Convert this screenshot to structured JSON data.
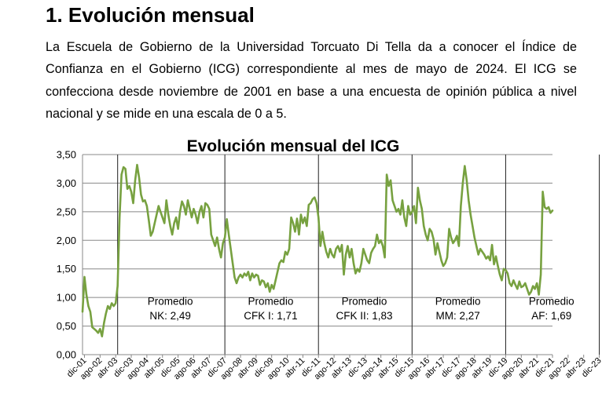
{
  "section_title": "1. Evolución mensual",
  "intro_text": "La Escuela de Gobierno de la Universidad Torcuato Di Tella da a conocer el Índice de Confianza en el Gobierno (ICG) correspondiente al mes de mayo de 2024. El ICG se confecciona desde noviembre de 2001 en base a una encuesta de opinión pública a nivel nacional y se mide en una escala de 0 a 5.",
  "chart_data": {
    "type": "line",
    "title": "Evolución mensual del ICG",
    "ylim": [
      0,
      3.5
    ],
    "y_ticks": [
      "0,00",
      "0,50",
      "1,00",
      "1,50",
      "2,00",
      "2,50",
      "3,00",
      "3,50"
    ],
    "x_tick_labels": [
      "dic-01",
      "ago-02",
      "abr-03",
      "dic-03",
      "ago-04",
      "abr-05",
      "dic-05",
      "ago-06",
      "abr-07",
      "dic-07",
      "ago-08",
      "abr-09",
      "dic-09",
      "ago-10",
      "abr-11",
      "dic-11",
      "ago-12",
      "abr-13",
      "dic-13",
      "ago-14",
      "abr-15",
      "dic-15",
      "ago-16",
      "abr-17",
      "dic-17",
      "ago-18",
      "abr-19",
      "dic-19",
      "ago-20",
      "abr-21",
      "dic-21",
      "ago-22",
      "abr-23",
      "dic-23"
    ],
    "grid": true,
    "line_color": "#77a140",
    "period_dividers": [
      "may-03",
      "dic-07",
      "dic-11",
      "dic-15",
      "dic-19",
      "dic-23"
    ],
    "annotations": [
      {
        "line1": "Promedio",
        "line2": "NK: 2,49",
        "period": [
          "may-03",
          "nov-07"
        ]
      },
      {
        "line1": "Promedio",
        "line2": "CFK I: 1,71",
        "period": [
          "dic-07",
          "nov-11"
        ]
      },
      {
        "line1": "Promedio",
        "line2": "CFK II: 1,83",
        "period": [
          "dic-11",
          "nov-15"
        ]
      },
      {
        "line1": "Promedio",
        "line2": "MM: 2,27",
        "period": [
          "dic-15",
          "nov-19"
        ]
      },
      {
        "line1": "Promedio",
        "line2": "AF: 1,69",
        "period": [
          "dic-19",
          "nov-23"
        ]
      }
    ],
    "series": [
      {
        "start": "nov-01",
        "values": [
          0.75,
          1.36,
          1.05,
          0.85,
          0.75,
          0.48,
          0.45,
          0.42,
          0.38,
          0.45,
          0.32,
          0.55,
          0.72,
          0.85,
          0.8,
          0.9,
          0.85,
          0.9,
          1.2,
          2.4,
          3.15,
          3.28,
          3.25,
          2.9,
          2.95,
          2.85,
          2.65,
          3.05,
          3.32,
          3.1,
          2.8,
          2.68,
          2.7,
          2.6,
          2.35,
          2.08,
          2.15,
          2.3,
          2.45,
          2.6,
          2.5,
          2.4,
          2.3,
          2.7,
          2.45,
          2.25,
          2.1,
          2.3,
          2.4,
          2.2,
          2.5,
          2.68,
          2.6,
          2.45,
          2.7,
          2.55,
          2.4,
          2.55,
          2.45,
          2.3,
          2.5,
          2.6,
          2.4,
          2.65,
          2.62,
          2.55,
          2.1,
          2.0,
          1.9,
          2.05,
          1.85,
          1.7,
          1.95,
          2.05,
          2.37,
          2.1,
          1.85,
          1.6,
          1.35,
          1.25,
          1.35,
          1.4,
          1.35,
          1.42,
          1.38,
          1.45,
          1.3,
          1.42,
          1.35,
          1.4,
          1.38,
          1.22,
          1.3,
          1.28,
          1.18,
          1.25,
          1.1,
          1.22,
          1.15,
          1.3,
          1.45,
          1.6,
          1.65,
          1.62,
          1.8,
          1.75,
          1.85,
          2.4,
          2.3,
          2.15,
          2.38,
          2.1,
          2.45,
          2.3,
          2.4,
          2.25,
          2.62,
          2.65,
          2.72,
          2.75,
          2.65,
          2.4,
          1.9,
          2.15,
          1.95,
          1.8,
          1.7,
          1.85,
          1.75,
          1.7,
          1.85,
          1.9,
          1.8,
          1.92,
          1.4,
          1.75,
          1.9,
          1.7,
          1.85,
          1.6,
          1.42,
          1.5,
          1.45,
          1.6,
          1.85,
          1.75,
          1.65,
          1.6,
          1.78,
          1.85,
          1.9,
          2.1,
          1.95,
          2.0,
          1.9,
          1.7,
          3.15,
          2.95,
          3.05,
          2.7,
          2.6,
          2.5,
          2.55,
          2.45,
          2.7,
          2.4,
          2.25,
          2.6,
          2.45,
          2.5,
          2.6,
          2.3,
          2.92,
          2.7,
          2.55,
          2.25,
          2.1,
          2.0,
          2.2,
          2.15,
          2.02,
          1.75,
          1.95,
          1.8,
          1.65,
          1.55,
          1.6,
          1.7,
          2.2,
          2.05,
          1.95,
          2.0,
          2.08,
          1.9,
          2.6,
          3.0,
          3.3,
          3.05,
          2.7,
          2.45,
          2.25,
          2.05,
          1.9,
          1.75,
          1.85,
          1.8,
          1.75,
          1.68,
          1.72,
          1.65,
          1.92,
          1.58,
          1.72,
          1.55,
          1.4,
          1.3,
          1.5,
          1.48,
          1.42,
          1.25,
          1.2,
          1.3,
          1.22,
          1.15,
          1.28,
          1.18,
          1.2,
          1.25,
          1.15,
          1.05,
          1.1,
          1.2,
          1.15,
          1.25,
          1.05,
          1.4,
          2.85,
          2.58,
          2.55,
          2.58,
          2.48,
          2.52
        ]
      }
    ]
  }
}
